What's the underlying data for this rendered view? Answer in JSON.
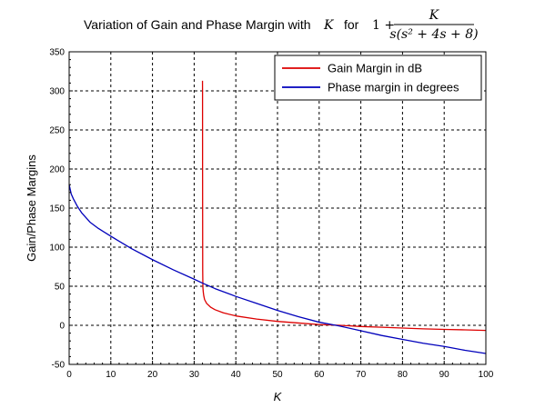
{
  "figure": {
    "title_text": "Variation of Gain and Phase Margin with",
    "title_var": "K",
    "title_for": "for",
    "title_expr_prefix": "1 +",
    "title_frac_num": "K",
    "title_frac_den": "s(s² + 4s + 8)"
  },
  "chart_data": {
    "type": "line",
    "xlabel": "K",
    "ylabel": "Gain/Phase Margins",
    "xlim": [
      0,
      100
    ],
    "ylim": [
      -50,
      350
    ],
    "xticks": [
      "0",
      "10",
      "20",
      "30",
      "40",
      "50",
      "60",
      "70",
      "80",
      "90",
      "100"
    ],
    "yticks": [
      "-50",
      "0",
      "50",
      "100",
      "150",
      "200",
      "250",
      "300",
      "350"
    ],
    "grid": true,
    "legend_position": "top-right",
    "series": [
      {
        "name": "Gain Margin in dB",
        "color": "#dd0000",
        "x": [
          32.0,
          32.01,
          32.02,
          32.05,
          32.1,
          32.2,
          32.3,
          32.5,
          33,
          34,
          35,
          37,
          40,
          45,
          50,
          55,
          60,
          65,
          70,
          75,
          80,
          85,
          90,
          95,
          100
        ],
        "y": [
          313,
          300,
          200,
          70,
          48,
          42,
          38,
          33,
          28,
          23,
          20,
          16,
          12,
          8,
          5,
          3,
          1,
          0,
          -1.5,
          -2.5,
          -3.5,
          -4.5,
          -5.2,
          -5.8,
          -6.5
        ]
      },
      {
        "name": "Phase margin in degrees",
        "color": "#0000bb",
        "x": [
          0,
          0.5,
          1,
          2,
          3,
          5,
          7,
          10,
          15,
          20,
          25,
          30,
          32,
          35,
          40,
          45,
          50,
          55,
          60,
          64,
          65,
          70,
          75,
          80,
          85,
          90,
          95,
          100
        ],
        "y": [
          180,
          168,
          162,
          152,
          144,
          132,
          124,
          114,
          98,
          84,
          71,
          59,
          54,
          47,
          37,
          28,
          19,
          11,
          4,
          0,
          -1,
          -7,
          -13,
          -18,
          -23,
          -27,
          -32,
          -36
        ]
      }
    ]
  }
}
